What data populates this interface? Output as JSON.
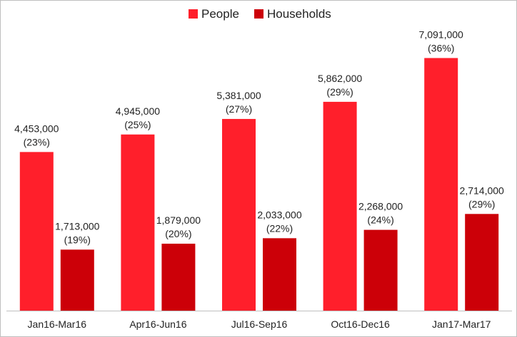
{
  "chart_data": {
    "type": "bar",
    "categories": [
      "Jan16-Mar16",
      "Apr16-Jun16",
      "Jul16-Sep16",
      "Oct16-Dec16",
      "Jan17-Mar17"
    ],
    "series": [
      {
        "name": "People",
        "color": "#ff1f2b",
        "values": [
          4453000,
          4945000,
          5381000,
          5862000,
          7091000
        ],
        "value_labels": [
          "4,453,000",
          "4,945,000",
          "5,381,000",
          "5,862,000",
          "7,091,000"
        ],
        "pct_labels": [
          "(23%)",
          "(25%)",
          "(27%)",
          "(29%)",
          "(36%)"
        ]
      },
      {
        "name": "Households",
        "color": "#cc0008",
        "values": [
          1713000,
          1879000,
          2033000,
          2268000,
          2714000
        ],
        "value_labels": [
          "1,713,000",
          "1,879,000",
          "2,033,000",
          "2,268,000",
          "2,714,000"
        ],
        "pct_labels": [
          "(19%)",
          "(20%)",
          "(22%)",
          "(24%)",
          "(29%)"
        ]
      }
    ],
    "title": "",
    "xlabel": "",
    "ylabel": "",
    "ylim": [
      0,
      7600000
    ],
    "grid": false,
    "legend_position": "top-center"
  }
}
